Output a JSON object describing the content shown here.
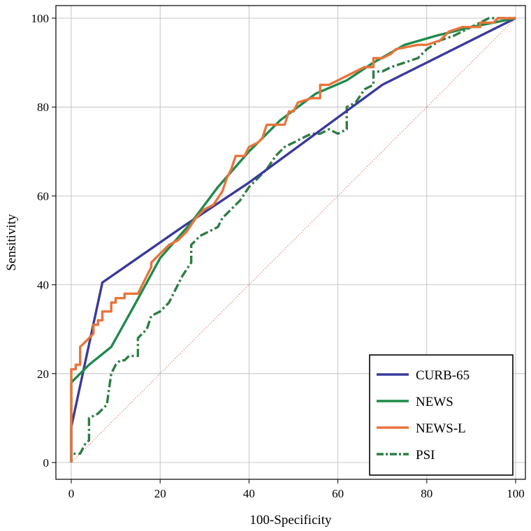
{
  "chart_data": {
    "type": "line",
    "xlabel": "100-Specificity",
    "ylabel": "Sensitivity",
    "xlim": [
      0,
      100
    ],
    "ylim": [
      0,
      100
    ],
    "x_ticks": [
      "0",
      "20",
      "40",
      "60",
      "80",
      "100"
    ],
    "y_ticks": [
      "0",
      "20",
      "40",
      "60",
      "80",
      "100"
    ],
    "grid": true,
    "legend_position": "bottom-right",
    "reference_line": {
      "style": "dotted",
      "color": "#d9705a",
      "points": [
        [
          0,
          0
        ],
        [
          100,
          100
        ]
      ]
    },
    "series": [
      {
        "name": "CURB-65",
        "color": "#3a3a9a",
        "style": "solid",
        "points": [
          [
            0,
            0
          ],
          [
            0,
            8
          ],
          [
            7,
            40.5
          ],
          [
            25,
            53
          ],
          [
            40,
            63
          ],
          [
            55,
            74
          ],
          [
            70,
            85
          ],
          [
            100,
            100
          ]
        ]
      },
      {
        "name": "NEWS",
        "color": "#1f8a4c",
        "style": "solid",
        "points": [
          [
            0,
            0
          ],
          [
            0,
            18
          ],
          [
            4,
            22
          ],
          [
            9,
            26
          ],
          [
            14,
            35
          ],
          [
            20,
            46
          ],
          [
            27,
            54
          ],
          [
            33,
            62
          ],
          [
            40,
            70
          ],
          [
            47,
            77
          ],
          [
            55,
            83
          ],
          [
            62,
            86
          ],
          [
            68,
            90
          ],
          [
            75,
            94
          ],
          [
            82,
            96
          ],
          [
            90,
            98
          ],
          [
            95,
            99
          ],
          [
            100,
            100
          ]
        ]
      },
      {
        "name": "NEWS-L",
        "color": "#e8743b",
        "style": "solid",
        "points": [
          [
            0,
            0
          ],
          [
            0,
            21
          ],
          [
            1,
            21
          ],
          [
            1,
            22
          ],
          [
            2,
            22
          ],
          [
            2,
            26
          ],
          [
            3,
            27
          ],
          [
            4,
            28
          ],
          [
            5,
            29
          ],
          [
            5,
            31
          ],
          [
            6,
            31
          ],
          [
            6,
            32
          ],
          [
            7,
            32
          ],
          [
            7,
            34
          ],
          [
            8,
            34
          ],
          [
            9,
            34
          ],
          [
            9,
            36
          ],
          [
            10,
            36
          ],
          [
            10,
            37
          ],
          [
            11,
            37
          ],
          [
            12,
            37
          ],
          [
            12,
            38
          ],
          [
            15,
            38
          ],
          [
            16,
            40
          ],
          [
            17,
            42
          ],
          [
            18,
            44
          ],
          [
            18,
            45
          ],
          [
            20,
            47
          ],
          [
            22,
            49
          ],
          [
            24,
            50
          ],
          [
            26,
            52
          ],
          [
            28,
            55
          ],
          [
            30,
            57
          ],
          [
            32,
            58
          ],
          [
            34,
            61
          ],
          [
            35,
            64
          ],
          [
            36,
            66
          ],
          [
            37,
            69
          ],
          [
            39,
            69
          ],
          [
            40,
            71
          ],
          [
            42,
            72
          ],
          [
            43,
            73
          ],
          [
            44,
            76
          ],
          [
            48,
            76
          ],
          [
            49,
            79
          ],
          [
            50,
            79
          ],
          [
            51,
            81
          ],
          [
            54,
            82
          ],
          [
            56,
            82
          ],
          [
            56,
            85
          ],
          [
            58,
            85
          ],
          [
            60,
            86
          ],
          [
            62,
            87
          ],
          [
            64,
            88
          ],
          [
            66,
            89
          ],
          [
            68,
            89
          ],
          [
            68,
            91
          ],
          [
            70,
            91
          ],
          [
            72,
            92
          ],
          [
            73,
            93
          ],
          [
            78,
            94
          ],
          [
            80,
            94
          ],
          [
            83,
            95
          ],
          [
            85,
            97
          ],
          [
            88,
            98
          ],
          [
            90,
            98
          ],
          [
            92,
            98
          ],
          [
            92,
            99
          ],
          [
            95,
            99
          ],
          [
            96,
            100
          ],
          [
            100,
            100
          ]
        ]
      },
      {
        "name": "PSI",
        "color": "#2e7d45",
        "style": "dashdot",
        "points": [
          [
            0,
            0
          ],
          [
            0,
            2
          ],
          [
            2,
            2
          ],
          [
            3,
            4
          ],
          [
            4,
            5
          ],
          [
            4,
            10
          ],
          [
            6,
            11
          ],
          [
            8,
            13
          ],
          [
            9,
            20
          ],
          [
            10,
            22
          ],
          [
            11,
            23
          ],
          [
            12,
            23
          ],
          [
            13,
            24
          ],
          [
            15,
            24
          ],
          [
            15,
            28
          ],
          [
            17,
            30
          ],
          [
            18,
            33
          ],
          [
            20,
            34
          ],
          [
            22,
            36
          ],
          [
            24,
            40
          ],
          [
            25,
            42
          ],
          [
            27,
            45
          ],
          [
            27,
            49
          ],
          [
            29,
            51
          ],
          [
            31,
            52
          ],
          [
            33,
            53
          ],
          [
            34,
            55
          ],
          [
            36,
            57
          ],
          [
            38,
            59
          ],
          [
            40,
            62
          ],
          [
            42,
            64
          ],
          [
            44,
            66
          ],
          [
            46,
            69
          ],
          [
            48,
            71
          ],
          [
            50,
            72
          ],
          [
            52,
            73
          ],
          [
            54,
            74
          ],
          [
            56,
            74
          ],
          [
            58,
            75
          ],
          [
            60,
            74
          ],
          [
            62,
            75
          ],
          [
            62,
            80
          ],
          [
            64,
            81
          ],
          [
            66,
            84
          ],
          [
            68,
            85
          ],
          [
            68,
            88
          ],
          [
            70,
            88
          ],
          [
            72,
            89
          ],
          [
            75,
            90
          ],
          [
            78,
            91
          ],
          [
            80,
            93
          ],
          [
            83,
            95
          ],
          [
            86,
            96
          ],
          [
            88,
            97
          ],
          [
            90,
            98
          ],
          [
            92,
            99
          ],
          [
            94,
            100
          ],
          [
            100,
            100
          ]
        ]
      }
    ]
  }
}
